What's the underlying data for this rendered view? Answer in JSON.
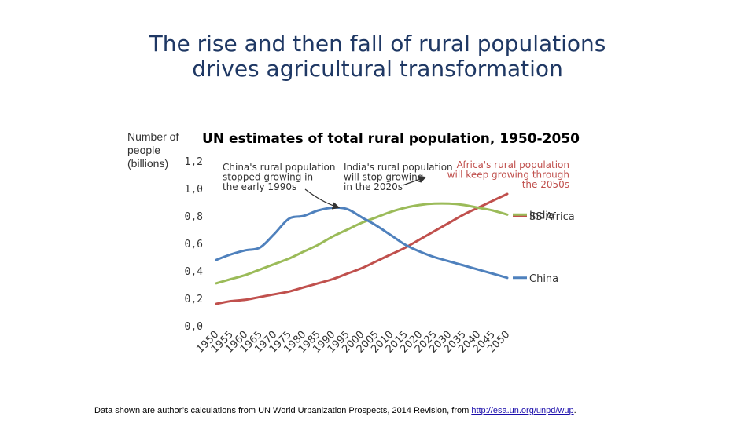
{
  "slide": {
    "title_line1": "The rise and then fall of rural populations",
    "title_line2": "drives agricultural transformation"
  },
  "ylabel_lines": [
    "Number of",
    "people",
    "(billions)"
  ],
  "footnote": {
    "text": "Data shown are author’s calculations  from UN World Urbanization Prospects, 2014 Revision, from ",
    "link": "http://esa.un.org/unpd/wup",
    "end": "."
  },
  "chart_data": {
    "type": "line",
    "title": "UN estimates of total rural population, 1950-2050",
    "ylabel": "Number of people (billions)",
    "ylim": [
      0,
      1.2
    ],
    "yticks": [
      "0,0",
      "0,2",
      "0,4",
      "0,6",
      "0,8",
      "1,0",
      "1,2"
    ],
    "xlim": [
      1950,
      2050
    ],
    "x": [
      1950,
      1955,
      1960,
      1965,
      1970,
      1975,
      1980,
      1985,
      1990,
      1995,
      2000,
      2005,
      2010,
      2015,
      2020,
      2025,
      2030,
      2035,
      2040,
      2045,
      2050
    ],
    "xtick_labels": [
      "1950",
      "1955",
      "1960",
      "1965",
      "1970",
      "1975",
      "1980",
      "1985",
      "1990",
      "1995",
      "2000",
      "2005",
      "2010",
      "2015",
      "2020",
      "2025",
      "2030",
      "2035",
      "2040",
      "2045",
      "2050"
    ],
    "grid": false,
    "series": [
      {
        "name": "SS Africa",
        "color": "#c0504d",
        "values": [
          0.16,
          0.18,
          0.19,
          0.21,
          0.23,
          0.25,
          0.28,
          0.31,
          0.34,
          0.38,
          0.42,
          0.47,
          0.52,
          0.57,
          0.63,
          0.69,
          0.75,
          0.81,
          0.86,
          0.91,
          0.96
        ]
      },
      {
        "name": "India",
        "color": "#9bbb59",
        "values": [
          0.31,
          0.34,
          0.37,
          0.41,
          0.45,
          0.49,
          0.54,
          0.59,
          0.65,
          0.7,
          0.75,
          0.79,
          0.83,
          0.86,
          0.88,
          0.89,
          0.89,
          0.88,
          0.86,
          0.84,
          0.81
        ]
      },
      {
        "name": "China",
        "color": "#4f81bd",
        "values": [
          0.48,
          0.52,
          0.55,
          0.57,
          0.67,
          0.78,
          0.8,
          0.84,
          0.86,
          0.85,
          0.79,
          0.73,
          0.66,
          0.59,
          0.54,
          0.5,
          0.47,
          0.44,
          0.41,
          0.38,
          0.35
        ]
      }
    ],
    "annotations": [
      {
        "name": "china-annotation",
        "color": "#333333",
        "lines": [
          "China's rural population",
          "stopped growing in",
          "the early 1990s"
        ]
      },
      {
        "name": "india-annotation",
        "color": "#333333",
        "lines": [
          "India's rural population",
          "will stop growing",
          "in the 2020s"
        ]
      },
      {
        "name": "africa-annotation",
        "color": "#c0504d",
        "lines": [
          "Africa's rural population",
          "will keep growing through",
          "the 2050s"
        ]
      }
    ]
  }
}
